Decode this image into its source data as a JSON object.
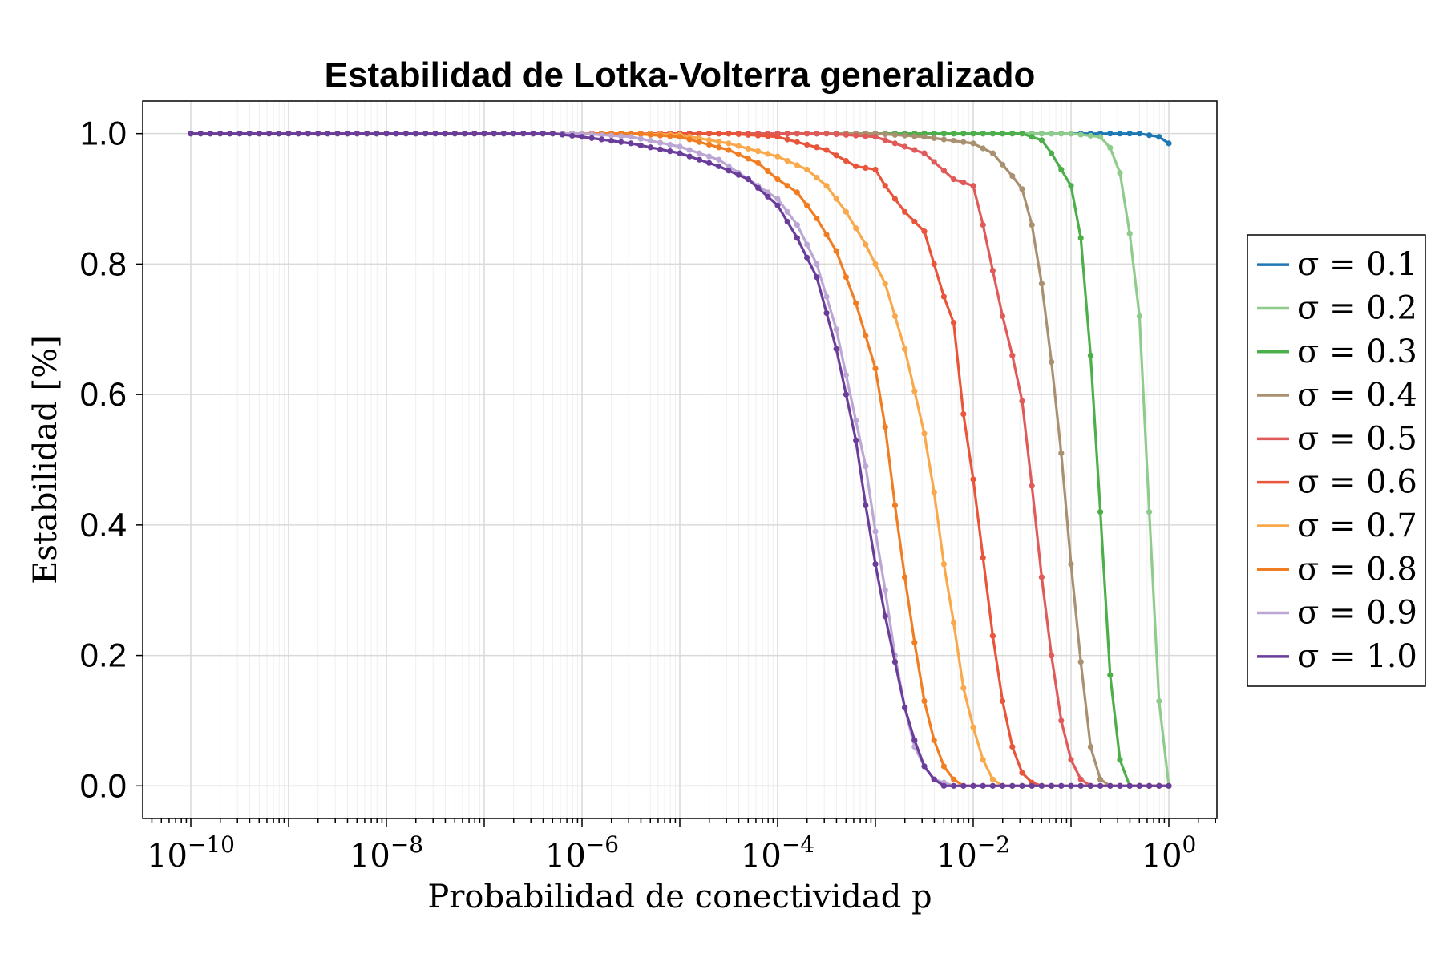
{
  "chart_data": {
    "type": "line",
    "title": "Estabilidad de Lotka-Volterra generalizado",
    "xlabel": "Probabilidad de conectividad p",
    "ylabel": "Estabilidad [%]",
    "xscale": "log",
    "xlim": [
      1e-10,
      1
    ],
    "ylim": [
      -0.05,
      1.05
    ],
    "x_ticks": [
      {
        "value": 1e-10,
        "base": "10",
        "exp": "−10"
      },
      {
        "value": 1e-08,
        "base": "10",
        "exp": "−8"
      },
      {
        "value": 1e-06,
        "base": "10",
        "exp": "−6"
      },
      {
        "value": 0.0001,
        "base": "10",
        "exp": "−4"
      },
      {
        "value": 0.01,
        "base": "10",
        "exp": "−2"
      },
      {
        "value": 1,
        "base": "10",
        "exp": "0"
      }
    ],
    "y_ticks": [
      {
        "value": 0.0,
        "label": "0.0"
      },
      {
        "value": 0.2,
        "label": "0.2"
      },
      {
        "value": 0.4,
        "label": "0.4"
      },
      {
        "value": 0.6,
        "label": "0.6"
      },
      {
        "value": 0.8,
        "label": "0.8"
      },
      {
        "value": 1.0,
        "label": "1.0"
      }
    ],
    "grid": true,
    "legend_position": "right",
    "x_log10_start": -10,
    "x_log10_end": 0,
    "points_per_series": 101,
    "series": [
      {
        "name": "σ = 0.1",
        "color": "#1f77b4",
        "knots": [
          [
            -10,
            1.0
          ],
          [
            -0.6,
            1.0
          ],
          [
            -0.3,
            1.0
          ],
          [
            -0.1,
            0.995
          ],
          [
            0,
            0.985
          ]
        ]
      },
      {
        "name": "σ = 0.2",
        "color": "#8fcc8c",
        "knots": [
          [
            -10,
            1.0
          ],
          [
            -1.0,
            1.0
          ],
          [
            -0.7,
            0.995
          ],
          [
            -0.55,
            0.97
          ],
          [
            -0.45,
            0.91
          ],
          [
            -0.3,
            0.72
          ],
          [
            -0.2,
            0.42
          ],
          [
            -0.1,
            0.13
          ],
          [
            -0.05,
            0.02
          ],
          [
            0,
            0.0
          ]
        ]
      },
      {
        "name": "σ = 0.3",
        "color": "#4daf4a",
        "knots": [
          [
            -10,
            1.0
          ],
          [
            -1.5,
            1.0
          ],
          [
            -1.3,
            0.99
          ],
          [
            -1.2,
            0.97
          ],
          [
            -1.0,
            0.92
          ],
          [
            -0.9,
            0.84
          ],
          [
            -0.8,
            0.66
          ],
          [
            -0.7,
            0.42
          ],
          [
            -0.6,
            0.17
          ],
          [
            -0.5,
            0.04
          ],
          [
            -0.4,
            0.0
          ],
          [
            0,
            0.0
          ]
        ]
      },
      {
        "name": "σ = 0.4",
        "color": "#a89070",
        "knots": [
          [
            -10,
            1.0
          ],
          [
            -3.0,
            1.0
          ],
          [
            -2.5,
            0.995
          ],
          [
            -2.0,
            0.985
          ],
          [
            -1.8,
            0.97
          ],
          [
            -1.6,
            0.935
          ],
          [
            -1.5,
            0.915
          ],
          [
            -1.4,
            0.86
          ],
          [
            -1.3,
            0.77
          ],
          [
            -1.2,
            0.65
          ],
          [
            -1.1,
            0.51
          ],
          [
            -1.0,
            0.34
          ],
          [
            -0.9,
            0.19
          ],
          [
            -0.8,
            0.06
          ],
          [
            -0.7,
            0.01
          ],
          [
            -0.6,
            0.0
          ],
          [
            0,
            0.0
          ]
        ]
      },
      {
        "name": "σ = 0.5",
        "color": "#e05a5a",
        "knots": [
          [
            -10,
            1.0
          ],
          [
            -3.5,
            1.0
          ],
          [
            -3.0,
            0.995
          ],
          [
            -2.5,
            0.97
          ],
          [
            -2.2,
            0.93
          ],
          [
            -2.0,
            0.92
          ],
          [
            -1.9,
            0.86
          ],
          [
            -1.8,
            0.79
          ],
          [
            -1.7,
            0.72
          ],
          [
            -1.6,
            0.66
          ],
          [
            -1.5,
            0.59
          ],
          [
            -1.4,
            0.46
          ],
          [
            -1.3,
            0.32
          ],
          [
            -1.2,
            0.2
          ],
          [
            -1.1,
            0.1
          ],
          [
            -1.0,
            0.04
          ],
          [
            -0.9,
            0.01
          ],
          [
            -0.8,
            0.0
          ],
          [
            0,
            0.0
          ]
        ]
      },
      {
        "name": "σ = 0.6",
        "color": "#e8553a",
        "knots": [
          [
            -10,
            1.0
          ],
          [
            -4.5,
            1.0
          ],
          [
            -4.0,
            0.995
          ],
          [
            -3.5,
            0.975
          ],
          [
            -3.2,
            0.95
          ],
          [
            -3.0,
            0.945
          ],
          [
            -2.9,
            0.92
          ],
          [
            -2.7,
            0.88
          ],
          [
            -2.5,
            0.85
          ],
          [
            -2.3,
            0.75
          ],
          [
            -2.2,
            0.71
          ],
          [
            -2.1,
            0.57
          ],
          [
            -2.0,
            0.47
          ],
          [
            -1.9,
            0.35
          ],
          [
            -1.8,
            0.23
          ],
          [
            -1.7,
            0.13
          ],
          [
            -1.6,
            0.06
          ],
          [
            -1.5,
            0.02
          ],
          [
            -1.4,
            0.005
          ],
          [
            -1.3,
            0.0
          ],
          [
            0,
            0.0
          ]
        ]
      },
      {
        "name": "σ = 0.7",
        "color": "#f9a94b",
        "knots": [
          [
            -10,
            1.0
          ],
          [
            -5.5,
            1.0
          ],
          [
            -5.0,
            0.998
          ],
          [
            -4.5,
            0.985
          ],
          [
            -4.0,
            0.965
          ],
          [
            -3.7,
            0.945
          ],
          [
            -3.5,
            0.92
          ],
          [
            -3.3,
            0.88
          ],
          [
            -3.1,
            0.83
          ],
          [
            -2.9,
            0.77
          ],
          [
            -2.7,
            0.67
          ],
          [
            -2.5,
            0.54
          ],
          [
            -2.4,
            0.45
          ],
          [
            -2.3,
            0.34
          ],
          [
            -2.2,
            0.25
          ],
          [
            -2.1,
            0.15
          ],
          [
            -2.0,
            0.09
          ],
          [
            -1.9,
            0.04
          ],
          [
            -1.8,
            0.01
          ],
          [
            -1.7,
            0.0
          ],
          [
            0,
            0.0
          ]
        ]
      },
      {
        "name": "σ = 0.8",
        "color": "#f17d22",
        "knots": [
          [
            -10,
            1.0
          ],
          [
            -5.5,
            1.0
          ],
          [
            -5.0,
            0.995
          ],
          [
            -4.5,
            0.975
          ],
          [
            -4.2,
            0.955
          ],
          [
            -4.0,
            0.93
          ],
          [
            -3.8,
            0.91
          ],
          [
            -3.6,
            0.87
          ],
          [
            -3.4,
            0.82
          ],
          [
            -3.2,
            0.74
          ],
          [
            -3.0,
            0.64
          ],
          [
            -2.9,
            0.55
          ],
          [
            -2.8,
            0.43
          ],
          [
            -2.7,
            0.32
          ],
          [
            -2.6,
            0.22
          ],
          [
            -2.5,
            0.13
          ],
          [
            -2.4,
            0.07
          ],
          [
            -2.3,
            0.03
          ],
          [
            -2.2,
            0.01
          ],
          [
            -2.1,
            0.0
          ],
          [
            0,
            0.0
          ]
        ]
      },
      {
        "name": "σ = 0.9",
        "color": "#bca7d4",
        "knots": [
          [
            -10,
            1.0
          ],
          [
            -6.0,
            1.0
          ],
          [
            -5.5,
            0.995
          ],
          [
            -5.0,
            0.98
          ],
          [
            -4.6,
            0.96
          ],
          [
            -4.3,
            0.93
          ],
          [
            -4.0,
            0.9
          ],
          [
            -3.8,
            0.86
          ],
          [
            -3.6,
            0.8
          ],
          [
            -3.4,
            0.7
          ],
          [
            -3.2,
            0.56
          ],
          [
            -3.1,
            0.49
          ],
          [
            -3.0,
            0.39
          ],
          [
            -2.9,
            0.3
          ],
          [
            -2.8,
            0.2
          ],
          [
            -2.7,
            0.12
          ],
          [
            -2.6,
            0.06
          ],
          [
            -2.5,
            0.03
          ],
          [
            -2.4,
            0.01
          ],
          [
            -2.3,
            0.005
          ],
          [
            -2.2,
            0.0
          ],
          [
            0,
            0.0
          ]
        ]
      },
      {
        "name": "σ = 1.0",
        "color": "#6a3d9a",
        "knots": [
          [
            -10,
            1.0
          ],
          [
            -6.3,
            1.0
          ],
          [
            -6.0,
            0.995
          ],
          [
            -5.5,
            0.985
          ],
          [
            -5.0,
            0.97
          ],
          [
            -4.6,
            0.95
          ],
          [
            -4.3,
            0.93
          ],
          [
            -4.0,
            0.89
          ],
          [
            -3.8,
            0.84
          ],
          [
            -3.6,
            0.78
          ],
          [
            -3.4,
            0.67
          ],
          [
            -3.3,
            0.6
          ],
          [
            -3.2,
            0.53
          ],
          [
            -3.1,
            0.43
          ],
          [
            -3.0,
            0.34
          ],
          [
            -2.9,
            0.26
          ],
          [
            -2.8,
            0.19
          ],
          [
            -2.7,
            0.12
          ],
          [
            -2.6,
            0.07
          ],
          [
            -2.5,
            0.03
          ],
          [
            -2.4,
            0.01
          ],
          [
            -2.3,
            0.0
          ],
          [
            0,
            0.0
          ]
        ]
      }
    ]
  }
}
